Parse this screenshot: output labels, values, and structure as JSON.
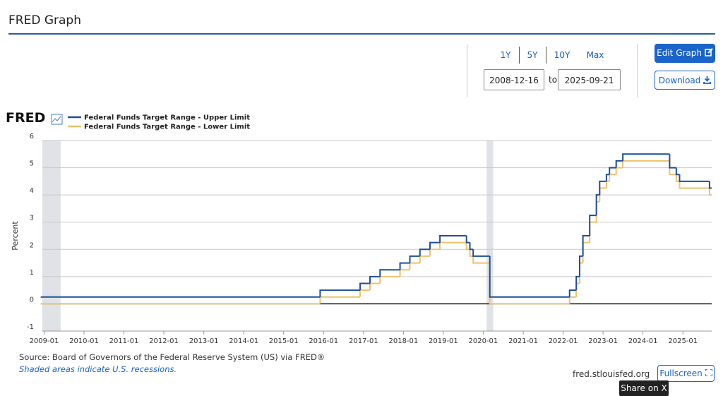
{
  "header": {
    "title": "FRED Graph"
  },
  "controls": {
    "ranges": [
      "1Y",
      "5Y",
      "10Y",
      "Max"
    ],
    "to": "to",
    "edit": "Edit Graph",
    "download": "Download"
  },
  "chart_data": {
    "type": "line",
    "logo": "FRED",
    "y_label": "Percent",
    "xlim": [
      "2008-12-16",
      "2025-09-21"
    ],
    "xticks": [
      "2009-01",
      "2010-01",
      "2011-01",
      "2012-01",
      "2013-01",
      "2014-01",
      "2015-01",
      "2016-01",
      "2017-01",
      "2018-01",
      "2019-01",
      "2020-01",
      "2021-01",
      "2022-01",
      "2023-01",
      "2024-01",
      "2025-01"
    ],
    "ylim": [
      -1,
      6
    ],
    "yticks": [
      -1,
      0,
      1,
      2,
      3,
      4,
      5,
      6
    ],
    "grid": true,
    "step": true,
    "recessions": [
      [
        "2008-12",
        "2009-06"
      ],
      [
        "2020-02",
        "2020-04"
      ]
    ],
    "x": [
      "2008-12",
      "2015-12",
      "2016-12",
      "2017-03",
      "2017-06",
      "2017-12",
      "2018-03",
      "2018-06",
      "2018-09",
      "2018-12",
      "2019-08",
      "2019-09",
      "2019-10",
      "2020-03",
      "2020-03",
      "2022-03",
      "2022-05",
      "2022-06",
      "2022-07",
      "2022-09",
      "2022-11",
      "2022-12",
      "2023-02",
      "2023-03",
      "2023-05",
      "2023-07",
      "2024-09",
      "2024-11",
      "2024-12",
      "2025-09"
    ],
    "series": [
      {
        "name": "Federal Funds Target Range - Upper Limit",
        "color": "#1f4f96",
        "values": [
          0.25,
          0.5,
          0.75,
          1.0,
          1.25,
          1.5,
          1.75,
          2.0,
          2.25,
          2.5,
          2.25,
          2.0,
          1.75,
          1.25,
          0.25,
          0.5,
          1.0,
          1.75,
          2.5,
          3.25,
          4.0,
          4.5,
          4.75,
          5.0,
          5.25,
          5.5,
          5.0,
          4.75,
          4.5,
          4.25
        ]
      },
      {
        "name": "Federal Funds Target Range - Lower Limit",
        "color": "#ecc26c",
        "values": [
          0,
          0.25,
          0.5,
          0.75,
          1.0,
          1.25,
          1.5,
          1.75,
          2.0,
          2.25,
          2.0,
          1.75,
          1.5,
          1.0,
          0,
          0.25,
          0.75,
          1.5,
          2.25,
          3.0,
          3.75,
          4.25,
          4.5,
          4.75,
          5.0,
          5.25,
          4.75,
          4.5,
          4.25,
          4.0
        ]
      }
    ]
  },
  "footer": {
    "source": "Source: Board of Governors of the Federal Reserve System (US) via FRED®",
    "note": "Shaded areas indicate U.S. recessions.",
    "site": "fred.stlouisfed.org",
    "fullscreen": "Fullscreen",
    "tooltip": "Share on X"
  }
}
